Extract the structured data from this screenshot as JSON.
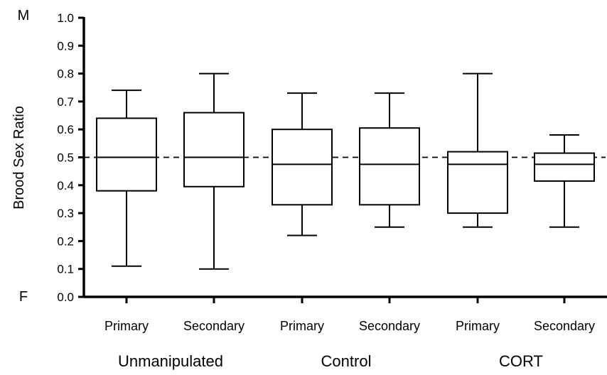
{
  "chart_data": {
    "type": "box",
    "ylabel": "Brood Sex Ratio",
    "ylim": [
      0.0,
      1.0
    ],
    "yticks": [
      "0.0",
      "0.1",
      "0.2",
      "0.3",
      "0.4",
      "0.5",
      "0.6",
      "0.7",
      "0.8",
      "0.9",
      "1.0"
    ],
    "y_top_annotation": "M",
    "y_bottom_annotation": "F",
    "reference_line": 0.5,
    "groups": [
      "Unmanipulated",
      "Control",
      "CORT"
    ],
    "categories": [
      "Primary",
      "Secondary",
      "Primary",
      "Secondary",
      "Primary",
      "Secondary"
    ],
    "boxes": [
      {
        "group": 0,
        "label": "Primary",
        "min": 0.11,
        "q1": 0.38,
        "median": 0.5,
        "q3": 0.64,
        "max": 0.74
      },
      {
        "group": 0,
        "label": "Secondary",
        "min": 0.1,
        "q1": 0.395,
        "median": 0.5,
        "q3": 0.66,
        "max": 0.8
      },
      {
        "group": 1,
        "label": "Primary",
        "min": 0.22,
        "q1": 0.33,
        "median": 0.475,
        "q3": 0.6,
        "max": 0.73
      },
      {
        "group": 1,
        "label": "Secondary",
        "min": 0.25,
        "q1": 0.33,
        "median": 0.475,
        "q3": 0.605,
        "max": 0.73
      },
      {
        "group": 2,
        "label": "Primary",
        "min": 0.25,
        "q1": 0.3,
        "median": 0.475,
        "q3": 0.52,
        "max": 0.8
      },
      {
        "group": 2,
        "label": "Secondary",
        "min": 0.25,
        "q1": 0.415,
        "median": 0.475,
        "q3": 0.515,
        "max": 0.58
      }
    ]
  }
}
